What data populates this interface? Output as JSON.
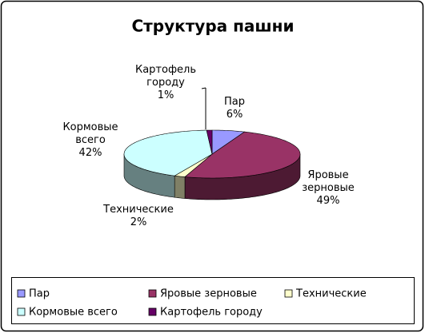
{
  "chart_data": {
    "type": "pie3d",
    "title": "Структура пашни",
    "categories": [
      "Пар",
      "Яровые зерновые",
      "Технические",
      "Кормовые всего",
      "Картофель городу"
    ],
    "values": [
      6,
      49,
      2,
      42,
      1
    ],
    "value_labels": [
      "6%",
      "49%",
      "2%",
      "42%",
      "1%"
    ],
    "colors": [
      "#9999ff",
      "#993366",
      "#ffffcc",
      "#ccffff",
      "#660066"
    ],
    "legend": "bottom"
  }
}
